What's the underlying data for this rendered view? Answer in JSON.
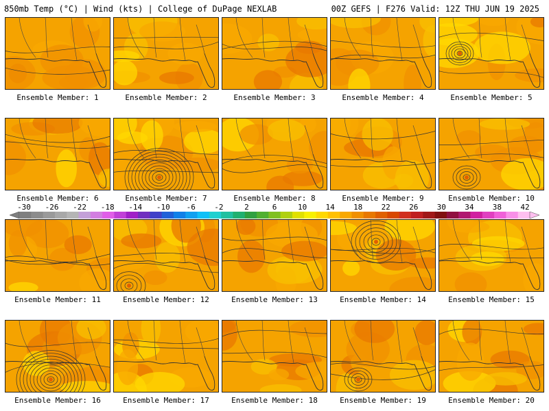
{
  "header": {
    "left": "850mb Temp (°C) | Wind (kts) | College of DuPage NEXLAB",
    "right": "00Z GEFS | F276 Valid: 12Z THU JUN 19 2025"
  },
  "members": [
    {
      "label": "Ensemble Member: 1",
      "low": null
    },
    {
      "label": "Ensemble Member: 2",
      "low": null
    },
    {
      "label": "Ensemble Member: 3",
      "low": null
    },
    {
      "label": "Ensemble Member: 4",
      "low": null
    },
    {
      "label": "Ensemble Member: 5",
      "low": "northwest"
    },
    {
      "label": "Ensemble Member: 6",
      "low": null
    },
    {
      "label": "Ensemble Member: 7",
      "low": "gulf-strong"
    },
    {
      "label": "Ensemble Member: 8",
      "low": null
    },
    {
      "label": "Ensemble Member: 9",
      "low": null
    },
    {
      "label": "Ensemble Member: 10",
      "low": "gulf-weak"
    },
    {
      "label": "Ensemble Member: 11",
      "low": null
    },
    {
      "label": "Ensemble Member: 12",
      "low": "southwest"
    },
    {
      "label": "Ensemble Member: 13",
      "low": null
    },
    {
      "label": "Ensemble Member: 14",
      "low": "central"
    },
    {
      "label": "Ensemble Member: 15",
      "low": null
    },
    {
      "label": "Ensemble Member: 16",
      "low": "gulf-strong"
    },
    {
      "label": "Ensemble Member: 17",
      "low": null
    },
    {
      "label": "Ensemble Member: 18",
      "low": null
    },
    {
      "label": "Ensemble Member: 19",
      "low": "gulf-weak"
    },
    {
      "label": "Ensemble Member: 20",
      "low": null
    }
  ],
  "colorbar": {
    "labels": [
      "-30",
      "-26",
      "-22",
      "-18",
      "-14",
      "-10",
      "-6",
      "-2",
      "2",
      "6",
      "10",
      "14",
      "18",
      "22",
      "26",
      "30",
      "34",
      "38",
      "42"
    ],
    "colors": [
      "#7f7f7f",
      "#8c8c8c",
      "#9a9a9a",
      "#a8a8a8",
      "#b5b5b5",
      "#c3a0d8",
      "#d27ee0",
      "#e05ee8",
      "#c040d8",
      "#a020c8",
      "#7030c0",
      "#4040c8",
      "#2060d8",
      "#1080e8",
      "#10a0f0",
      "#10c0f8",
      "#20d0d0",
      "#20c0a0",
      "#20b070",
      "#30a040",
      "#50b030",
      "#80c020",
      "#b0d010",
      "#e0e000",
      "#f8f000",
      "#ffd800",
      "#ffc000",
      "#f8a800",
      "#f09000",
      "#e87800",
      "#e06000",
      "#d84800",
      "#d03020",
      "#c02020",
      "#a01818",
      "#801010",
      "#901040",
      "#b01870",
      "#d020a0",
      "#e040c0",
      "#f060d8",
      "#f890e8",
      "#ffc0f0"
    ]
  }
}
